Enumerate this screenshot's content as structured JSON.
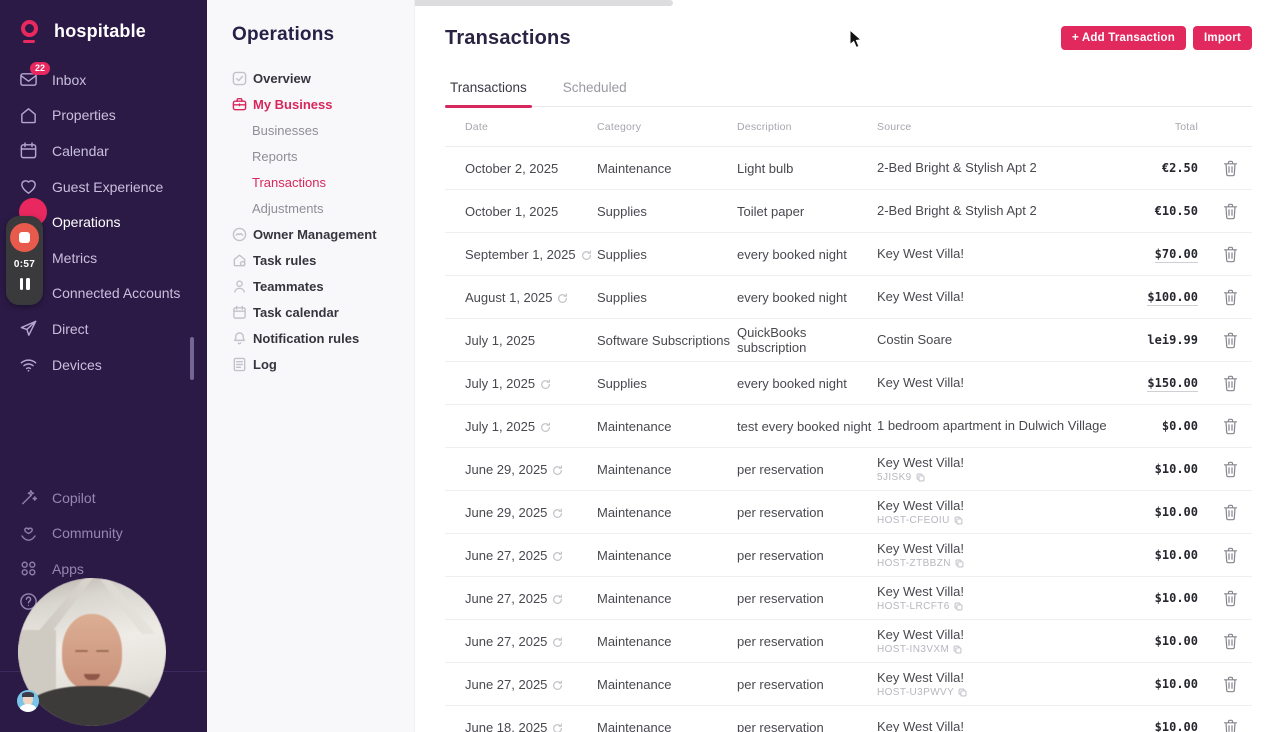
{
  "brand": {
    "name": "hospitable"
  },
  "colors": {
    "accent": "#e2295e",
    "sidebar_bg": "#2b1a46",
    "active_pink": "#d8275d"
  },
  "sidebar": {
    "items": [
      {
        "label": "Inbox",
        "icon": "inbox-icon",
        "badge": "22",
        "active": false
      },
      {
        "label": "Properties",
        "icon": "home-icon",
        "active": false
      },
      {
        "label": "Calendar",
        "icon": "calendar-icon",
        "active": false
      },
      {
        "label": "Guest Experience",
        "icon": "heart-icon",
        "active": false
      },
      {
        "label": "Operations",
        "icon": "gear-icon",
        "active": true
      },
      {
        "label": "Metrics",
        "icon": "metrics-icon",
        "active": false
      },
      {
        "label": "Connected Accounts",
        "icon": "link-icon",
        "active": false
      },
      {
        "label": "Direct",
        "icon": "send-icon",
        "active": false
      },
      {
        "label": "Devices",
        "icon": "wifi-icon",
        "active": false
      }
    ],
    "footer_items": [
      {
        "label": "Copilot",
        "icon": "wand-icon"
      },
      {
        "label": "Community",
        "icon": "community-icon"
      },
      {
        "label": "Apps",
        "icon": "apps-icon"
      }
    ]
  },
  "recorder": {
    "time": "0:57"
  },
  "submenu": {
    "title": "Operations",
    "items": [
      {
        "label": "Overview",
        "icon": "checkbox-icon",
        "style": "parent",
        "active": false
      },
      {
        "label": "My Business",
        "icon": "briefcase-icon",
        "style": "parent",
        "active": true
      },
      {
        "label": "Businesses",
        "style": "sub",
        "active": false
      },
      {
        "label": "Reports",
        "style": "sub",
        "active": false
      },
      {
        "label": "Transactions",
        "style": "sub",
        "active": true
      },
      {
        "label": "Adjustments",
        "style": "sub",
        "active": false
      },
      {
        "label": "Owner Management",
        "icon": "owner-icon",
        "style": "parent",
        "active": false
      },
      {
        "label": "Task rules",
        "icon": "task-rules-icon",
        "style": "parent",
        "active": false
      },
      {
        "label": "Teammates",
        "icon": "person-icon",
        "style": "parent",
        "active": false
      },
      {
        "label": "Task calendar",
        "icon": "task-calendar-icon",
        "style": "parent",
        "active": false
      },
      {
        "label": "Notification rules",
        "icon": "bell-icon",
        "style": "parent",
        "active": false
      },
      {
        "label": "Log",
        "icon": "log-icon",
        "style": "parent",
        "active": false
      }
    ]
  },
  "main": {
    "title": "Transactions",
    "actions": [
      {
        "label": "+ Add Transaction"
      },
      {
        "label": "Import"
      }
    ],
    "tabs": [
      {
        "label": "Transactions",
        "active": true
      },
      {
        "label": "Scheduled",
        "active": false
      }
    ],
    "table": {
      "columns": [
        "Date",
        "Category",
        "Description",
        "Source",
        "Total"
      ],
      "rows": [
        {
          "date": "October 2, 2025",
          "recurring": false,
          "category": "Maintenance",
          "description": "Light bulb",
          "source": "2-Bed Bright & Stylish Apt 2",
          "source_code": null,
          "total": "€2.50",
          "underlined": false
        },
        {
          "date": "October 1, 2025",
          "recurring": false,
          "category": "Supplies",
          "description": "Toilet paper",
          "source": "2-Bed Bright & Stylish Apt 2",
          "source_code": null,
          "total": "€10.50",
          "underlined": false
        },
        {
          "date": "September 1, 2025",
          "recurring": true,
          "category": "Supplies",
          "description": "every booked night",
          "source": "Key West Villa!",
          "source_code": null,
          "total": "$70.00",
          "underlined": true
        },
        {
          "date": "August 1, 2025",
          "recurring": true,
          "category": "Supplies",
          "description": "every booked night",
          "source": "Key West Villa!",
          "source_code": null,
          "total": "$100.00",
          "underlined": true
        },
        {
          "date": "July 1, 2025",
          "recurring": false,
          "category": "Software Subscriptions",
          "description": "QuickBooks subscription",
          "source": "Costin Soare",
          "source_code": null,
          "total": "lei9.99",
          "underlined": false
        },
        {
          "date": "July 1, 2025",
          "recurring": true,
          "category": "Supplies",
          "description": "every booked night",
          "source": "Key West Villa!",
          "source_code": null,
          "total": "$150.00",
          "underlined": true
        },
        {
          "date": "July 1, 2025",
          "recurring": true,
          "category": "Maintenance",
          "description": "test every booked night",
          "source": "1 bedroom apartment in Dulwich Village",
          "source_code": null,
          "total": "$0.00",
          "underlined": false
        },
        {
          "date": "June 29, 2025",
          "recurring": true,
          "category": "Maintenance",
          "description": "per reservation",
          "source": "Key West Villa!",
          "source_code": "5JISK9",
          "total": "$10.00",
          "underlined": false
        },
        {
          "date": "June 29, 2025",
          "recurring": true,
          "category": "Maintenance",
          "description": "per reservation",
          "source": "Key West Villa!",
          "source_code": "HOST-CFEOIU",
          "total": "$10.00",
          "underlined": false
        },
        {
          "date": "June 27, 2025",
          "recurring": true,
          "category": "Maintenance",
          "description": "per reservation",
          "source": "Key West Villa!",
          "source_code": "HOST-ZTBBZN",
          "total": "$10.00",
          "underlined": false
        },
        {
          "date": "June 27, 2025",
          "recurring": true,
          "category": "Maintenance",
          "description": "per reservation",
          "source": "Key West Villa!",
          "source_code": "HOST-LRCFT6",
          "total": "$10.00",
          "underlined": false
        },
        {
          "date": "June 27, 2025",
          "recurring": true,
          "category": "Maintenance",
          "description": "per reservation",
          "source": "Key West Villa!",
          "source_code": "HOST-IN3VXM",
          "total": "$10.00",
          "underlined": false
        },
        {
          "date": "June 27, 2025",
          "recurring": true,
          "category": "Maintenance",
          "description": "per reservation",
          "source": "Key West Villa!",
          "source_code": "HOST-U3PWVY",
          "total": "$10.00",
          "underlined": false
        },
        {
          "date": "June 18, 2025",
          "recurring": true,
          "category": "Maintenance",
          "description": "per reservation",
          "source": "Key West Villa!",
          "source_code": null,
          "total": "$10.00",
          "underlined": false
        }
      ]
    }
  }
}
